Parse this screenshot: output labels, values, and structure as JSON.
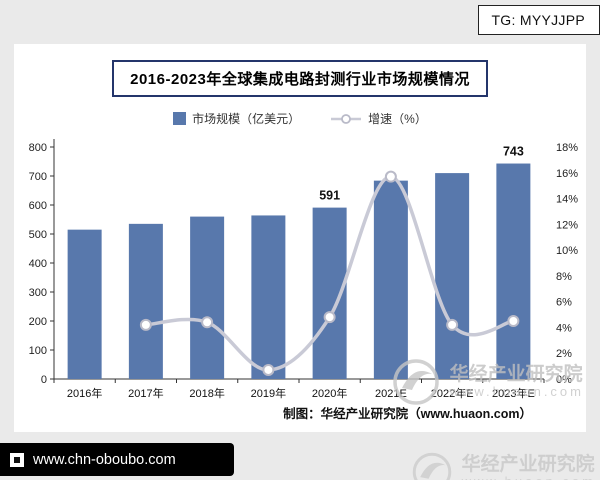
{
  "page": {
    "tg_badge": "TG: MYYJJPP",
    "source_note": "制图：华经产业研究院（www.huaon.com）",
    "watermark": {
      "name": "华经产业研究院",
      "url": "www.huaon.com"
    },
    "bottom_bar": {
      "url": "www.chn-oboubo.com"
    }
  },
  "chart_data": {
    "type": "bar",
    "title": "2016-2023年全球集成电路封测行业市场规模情况",
    "categories": [
      "2016年",
      "2017年",
      "2018年",
      "2019年",
      "2020年",
      "2021E",
      "2022年E",
      "2023年E"
    ],
    "series": [
      {
        "name": "市场规模（亿美元）",
        "type": "bar",
        "values": [
          515,
          535,
          560,
          564,
          591,
          684,
          710,
          743
        ],
        "labels": [
          null,
          null,
          null,
          null,
          "591",
          null,
          null,
          "743"
        ],
        "color": "#5878ac"
      },
      {
        "name": "增速（%）",
        "type": "line",
        "values": [
          null,
          4.2,
          4.4,
          0.7,
          4.8,
          15.7,
          4.2,
          4.5
        ],
        "color": "#c9cad6",
        "marker_stroke": "#b9bac8"
      }
    ],
    "left_axis": {
      "min": 0,
      "max": 800,
      "step": 100
    },
    "right_axis": {
      "min": 0,
      "max": 18,
      "step": 2,
      "suffix": "%"
    },
    "grid": false,
    "legend_position": "top"
  }
}
